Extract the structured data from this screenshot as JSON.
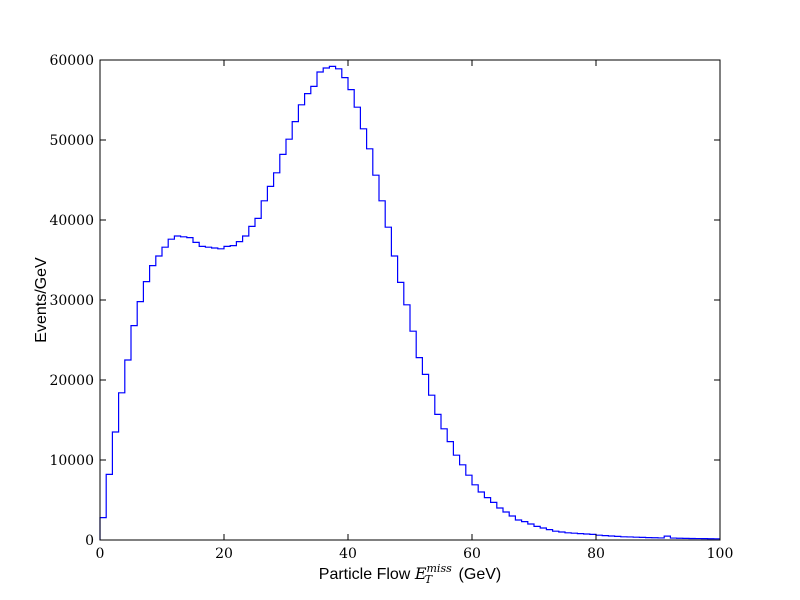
{
  "chart_data": {
    "type": "line",
    "style": "step-histogram",
    "xlabel": {
      "prefix": "Particle Flow ",
      "symbol": "E",
      "subscript": "T",
      "superscript": "miss",
      "suffix": " (GeV)"
    },
    "ylabel": "Events/GeV",
    "xlim": [
      0,
      100
    ],
    "ylim": [
      0,
      60000
    ],
    "xticks": [
      0,
      20,
      40,
      60,
      80,
      100
    ],
    "yticks": [
      0,
      10000,
      20000,
      30000,
      40000,
      50000,
      60000
    ],
    "grid": false,
    "line_color": "#0000ff",
    "bin_edges_start": 0,
    "bin_width": 1,
    "series": [
      {
        "values": [
          2800,
          8200,
          13500,
          18400,
          22500,
          26800,
          29800,
          32300,
          34300,
          35500,
          36600,
          37600,
          38000,
          37900,
          37800,
          37200,
          36700,
          36600,
          36500,
          36400,
          36700,
          36800,
          37300,
          38000,
          39200,
          40200,
          42400,
          44200,
          45900,
          48200,
          50100,
          52300,
          54400,
          55800,
          56700,
          58500,
          59000,
          59200,
          58900,
          57800,
          56300,
          54100,
          51400,
          48900,
          45600,
          42400,
          39100,
          35500,
          32200,
          29400,
          26100,
          22800,
          20700,
          18100,
          15700,
          13900,
          12300,
          10600,
          9400,
          8100,
          6900,
          6000,
          5300,
          4700,
          4000,
          3500,
          3000,
          2500,
          2300,
          2000,
          1700,
          1500,
          1300,
          1100,
          1000,
          900,
          850,
          800,
          750,
          700,
          600,
          550,
          500,
          450,
          400,
          380,
          350,
          330,
          300,
          280,
          260,
          480,
          240,
          220,
          200,
          190,
          180,
          170,
          160,
          150
        ]
      }
    ]
  }
}
